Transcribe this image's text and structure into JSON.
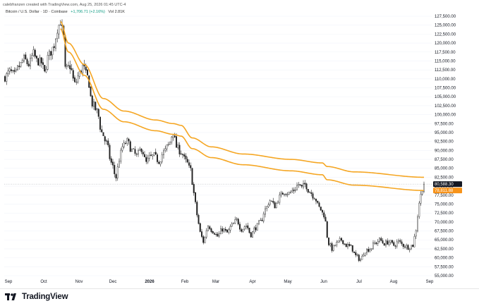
{
  "header": {
    "created_text": "calebfranzen created with TradingView.com, Aug 25, 2026 01:45 UTC-4"
  },
  "legend": {
    "symbol": "Bitcoin / U.S. Dollar · 1D · Coinbase",
    "change": "+1,706.71 (+2.16%)",
    "volume": "Vol 2.81K"
  },
  "footer": {
    "brand": "TradingView"
  },
  "colors": {
    "band": "#f5a623",
    "candle": "#222222",
    "price_tag": "#131722",
    "band_tag": "#f7931a",
    "grid": "#f0f3fa"
  },
  "chart_data": {
    "type": "candlestick",
    "ylim": [
      54000,
      129000
    ],
    "y_ticks": [
      "127,500.00",
      "125,000.00",
      "122,500.00",
      "120,000.00",
      "117,500.00",
      "115,000.00",
      "112,500.00",
      "110,000.00",
      "107,500.00",
      "105,000.00",
      "102,500.00",
      "100,000.00",
      "97,500.00",
      "95,000.00",
      "92,500.00",
      "90,000.00",
      "87,500.00",
      "85,000.00",
      "82,500.00",
      "80,000.00",
      "77,500.00",
      "75,000.00",
      "72,500.00",
      "70,000.00",
      "67,500.00",
      "65,000.00",
      "62,500.00",
      "60,000.00",
      "57,500.00",
      "55,000.00"
    ],
    "x_ticks": [
      "Sep",
      "Oct",
      "Nov",
      "Dec",
      "2026",
      "Feb",
      "Mar",
      "Apr",
      "May",
      "Jun",
      "Jul",
      "Aug",
      "Sep"
    ],
    "last_price": "80,588.30",
    "band_value": "78,811.88",
    "price_anchors": [
      [
        0,
        110500
      ],
      [
        3,
        112000
      ],
      [
        6,
        111000
      ],
      [
        9,
        113500
      ],
      [
        12,
        115500
      ],
      [
        15,
        114000
      ],
      [
        18,
        117000
      ],
      [
        20,
        115000
      ],
      [
        23,
        114500
      ],
      [
        25,
        111500
      ],
      [
        27,
        116000
      ],
      [
        29,
        117500
      ],
      [
        31,
        119500
      ],
      [
        33,
        124000
      ],
      [
        35,
        126000
      ],
      [
        37,
        121500
      ],
      [
        38,
        112500
      ],
      [
        41,
        113500
      ],
      [
        44,
        108500
      ],
      [
        47,
        111500
      ],
      [
        49,
        113500
      ],
      [
        52,
        110500
      ],
      [
        55,
        103000
      ],
      [
        58,
        101000
      ],
      [
        61,
        95000
      ],
      [
        64,
        92000
      ],
      [
        67,
        86500
      ],
      [
        70,
        82500
      ],
      [
        72,
        87500
      ],
      [
        74,
        91000
      ],
      [
        77,
        92500
      ],
      [
        80,
        90000
      ],
      [
        83,
        88500
      ],
      [
        86,
        90500
      ],
      [
        89,
        86500
      ],
      [
        91,
        88000
      ],
      [
        94,
        88500
      ],
      [
        97,
        87000
      ],
      [
        100,
        89500
      ],
      [
        103,
        91500
      ],
      [
        106,
        95000
      ],
      [
        108,
        91000
      ],
      [
        111,
        89500
      ],
      [
        114,
        87000
      ],
      [
        117,
        84500
      ],
      [
        119,
        78000
      ],
      [
        121,
        72000
      ],
      [
        123,
        67000
      ],
      [
        125,
        64500
      ],
      [
        128,
        69000
      ],
      [
        131,
        67500
      ],
      [
        134,
        66000
      ],
      [
        137,
        68000
      ],
      [
        140,
        67000
      ],
      [
        143,
        69000
      ],
      [
        146,
        70500
      ],
      [
        149,
        68000
      ],
      [
        152,
        69000
      ],
      [
        155,
        66500
      ],
      [
        158,
        68500
      ],
      [
        161,
        70000
      ],
      [
        164,
        73500
      ],
      [
        167,
        76000
      ],
      [
        170,
        74500
      ],
      [
        173,
        77000
      ],
      [
        176,
        78500
      ],
      [
        179,
        78000
      ],
      [
        182,
        79000
      ],
      [
        185,
        80500
      ],
      [
        187,
        79500
      ],
      [
        189,
        80500
      ],
      [
        192,
        78500
      ],
      [
        195,
        77000
      ],
      [
        198,
        74000
      ],
      [
        201,
        72000
      ],
      [
        204,
        64000
      ],
      [
        206,
        62500
      ],
      [
        209,
        64000
      ],
      [
        212,
        65000
      ],
      [
        215,
        63500
      ],
      [
        218,
        63000
      ],
      [
        221,
        60500
      ],
      [
        224,
        59500
      ],
      [
        227,
        62000
      ],
      [
        230,
        62500
      ],
      [
        233,
        64000
      ],
      [
        236,
        65000
      ],
      [
        239,
        64000
      ],
      [
        242,
        64500
      ],
      [
        245,
        63500
      ],
      [
        248,
        64500
      ],
      [
        251,
        63500
      ],
      [
        254,
        63000
      ],
      [
        257,
        63500
      ],
      [
        259,
        68000
      ],
      [
        261,
        75500
      ],
      [
        263,
        79500
      ],
      [
        264,
        80588
      ]
    ],
    "band_upper_anchors": [
      [
        35,
        126000
      ],
      [
        40,
        120000
      ],
      [
        50,
        114000
      ],
      [
        62,
        104500
      ],
      [
        75,
        101000
      ],
      [
        95,
        98500
      ],
      [
        106,
        97500
      ],
      [
        111,
        97000
      ],
      [
        118,
        93500
      ],
      [
        130,
        91000
      ],
      [
        150,
        89000
      ],
      [
        180,
        87500
      ],
      [
        200,
        86500
      ],
      [
        203,
        85500
      ],
      [
        220,
        84000
      ],
      [
        264,
        82500
      ]
    ],
    "band_lower_anchors": [
      [
        35,
        124000
      ],
      [
        40,
        117500
      ],
      [
        50,
        111000
      ],
      [
        62,
        101500
      ],
      [
        75,
        98000
      ],
      [
        95,
        95500
      ],
      [
        106,
        94500
      ],
      [
        111,
        94000
      ],
      [
        118,
        90500
      ],
      [
        130,
        88000
      ],
      [
        150,
        86000
      ],
      [
        180,
        84300
      ],
      [
        200,
        83200
      ],
      [
        203,
        81800
      ],
      [
        220,
        80300
      ],
      [
        264,
        78812
      ]
    ]
  }
}
